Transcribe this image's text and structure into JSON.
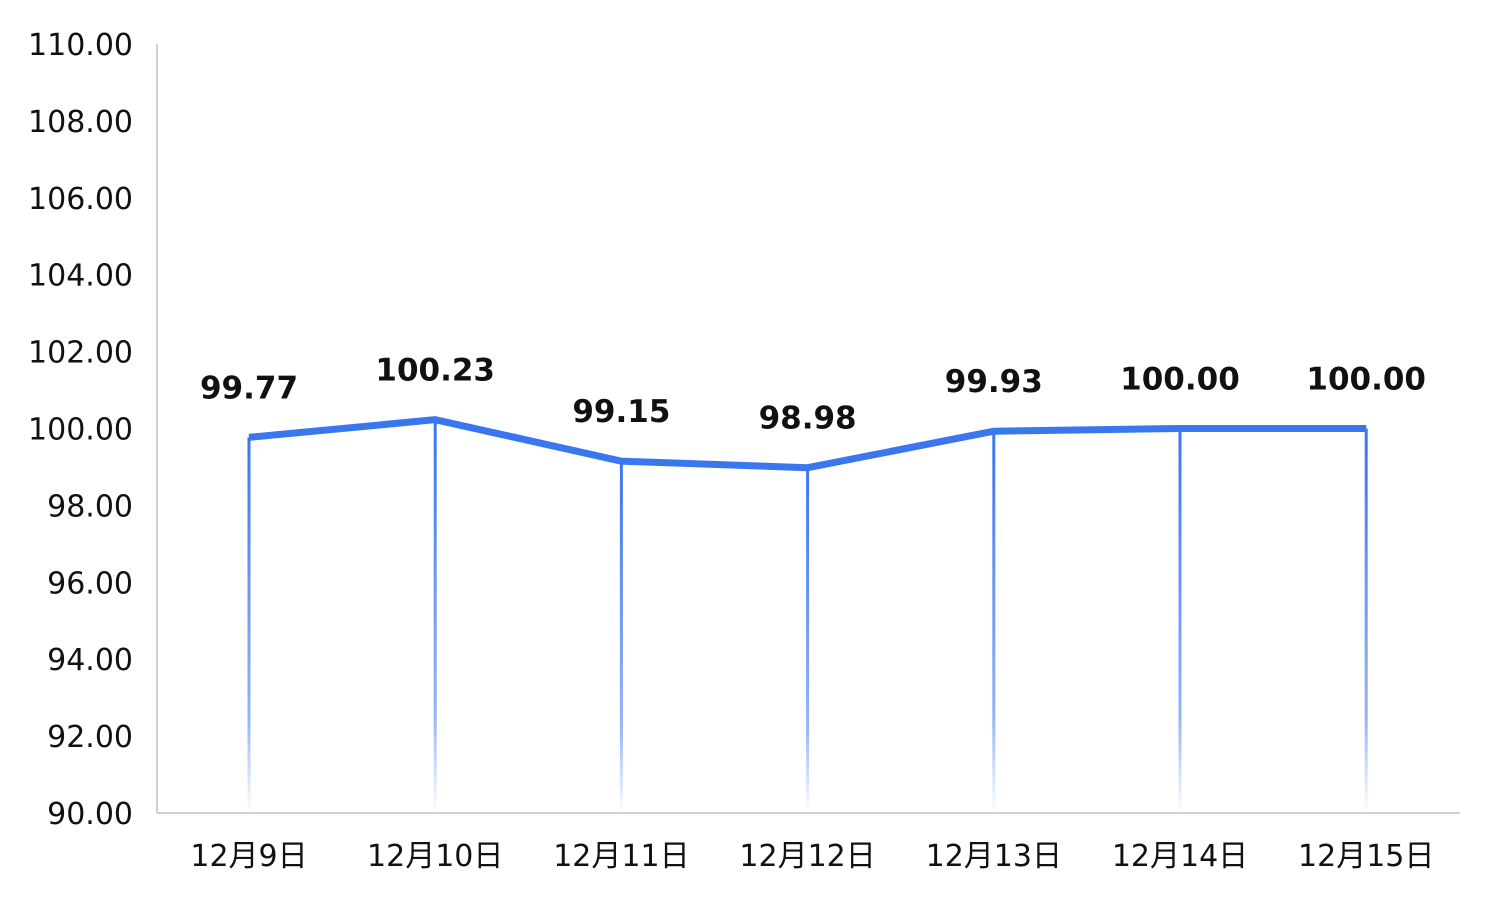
{
  "chart_data": {
    "type": "line",
    "title": "",
    "xlabel": "",
    "ylabel": "",
    "categories": [
      "12月9日",
      "12月10日",
      "12月11日",
      "12月12日",
      "12月13日",
      "12月14日",
      "12月15日"
    ],
    "values": [
      99.77,
      100.23,
      99.15,
      98.98,
      99.93,
      100.0,
      100.0
    ],
    "data_labels": [
      "99.77",
      "100.23",
      "99.15",
      "98.98",
      "99.93",
      "100.00",
      "100.00"
    ],
    "ylim": [
      90,
      110
    ],
    "y_ticks": [
      "90.00",
      "92.00",
      "94.00",
      "96.00",
      "98.00",
      "100.00",
      "102.00",
      "104.00",
      "106.00",
      "108.00",
      "110.00"
    ],
    "grid": false,
    "line_color": "#3a76ee",
    "drop_line_color": "#3a76ee",
    "axis_color": "#d0d0d0",
    "drop_lines": true
  }
}
